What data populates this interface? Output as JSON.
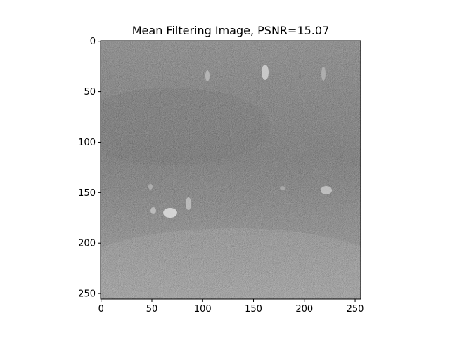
{
  "chart_data": {
    "type": "heatmap",
    "title": "Mean Filtering Image, PSNR=15.07",
    "xlabel": "",
    "ylabel": "",
    "xlim": [
      -0.5,
      255.5
    ],
    "ylim": [
      255.5,
      -0.5
    ],
    "x_ticks": [
      0,
      50,
      100,
      150,
      200,
      250
    ],
    "y_ticks": [
      0,
      50,
      100,
      150,
      200,
      250
    ],
    "image_size": [
      256,
      256
    ],
    "colormap": "gray",
    "grid": false,
    "legend": "none",
    "content_description": "noisy grayscale image, darker band across upper-middle region, brighter noisy lower region, small bright spots"
  }
}
